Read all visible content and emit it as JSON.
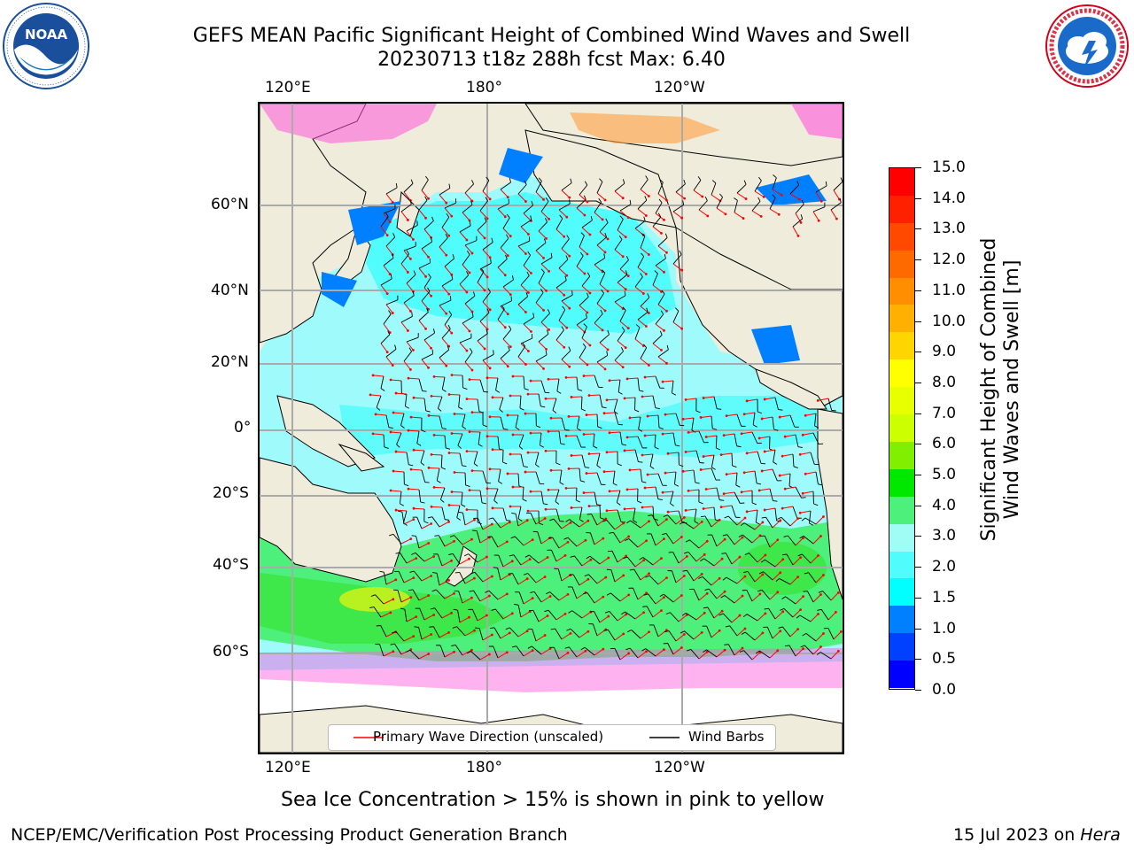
{
  "title": {
    "line1": "GEFS MEAN Pacific Significant Height of Combined Wind Waves and Swell",
    "line2": "20230713 t18z 288h fcst   Max: 6.40"
  },
  "logos": {
    "left": {
      "name": "NOAA",
      "text": "NOAA",
      "ring_text": "NATIONAL OCEANIC AND ATMOSPHERIC ADMINISTRATION · U.S. DEPARTMENT OF COMMERCE"
    },
    "right": {
      "name": "National Weather Service",
      "ring_text": "NATIONAL WEATHER SERVICE"
    }
  },
  "map": {
    "lon_labels_top": [
      "120°E",
      "180°",
      "120°W"
    ],
    "lon_labels_bottom": [
      "120°E",
      "180°",
      "120°W"
    ],
    "lat_labels": [
      "60°N",
      "40°N",
      "20°N",
      "0°",
      "20°S",
      "40°S",
      "60°S"
    ],
    "ocean_color": "#9ffbfb",
    "land_color": "#efecdc",
    "legend": {
      "wave_direction": "Primary Wave Direction (unscaled)",
      "wind_barbs": "Wind Barbs",
      "wave_color": "#ff0000",
      "barb_color": "#000000"
    }
  },
  "colorbar": {
    "label_line1": "Significant Height of Combined",
    "label_line2": "Wind Waves and Swell [m]",
    "ticks": [
      "15.0",
      "14.0",
      "13.0",
      "12.0",
      "11.0",
      "10.0",
      "9.0",
      "8.0",
      "7.0",
      "6.0",
      "5.0",
      "4.0",
      "3.0",
      "2.0",
      "1.5",
      "1.0",
      "0.5",
      "0.0"
    ],
    "colors": [
      "#ff0000",
      "#ff2000",
      "#ff4800",
      "#ff6a00",
      "#ff8f00",
      "#ffb000",
      "#ffd500",
      "#ffff00",
      "#e8ff00",
      "#ccff00",
      "#80f000",
      "#00e800",
      "#4df07a",
      "#a0fdf5",
      "#50fcfc",
      "#00ffff",
      "#0080ff",
      "#0040ff",
      "#0000ff"
    ]
  },
  "caption": "Sea Ice Concentration > 15% is shown in pink to yellow",
  "footer": {
    "left": "NCEP/EMC/Verification Post Processing Product Generation Branch",
    "right_date": "15 Jul 2023 on ",
    "right_host": "Hera"
  }
}
